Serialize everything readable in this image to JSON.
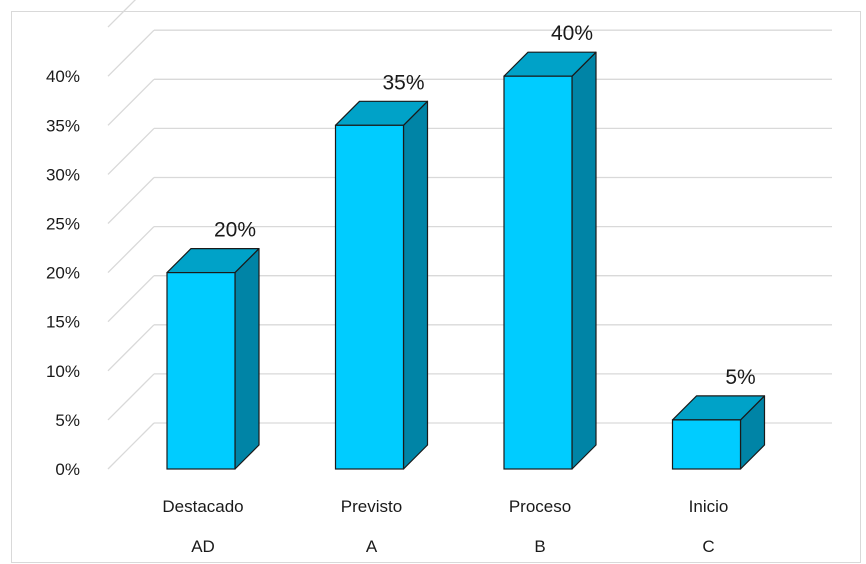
{
  "chart_data": {
    "type": "bar",
    "style": "3d-column",
    "categories": [
      "Destacado",
      "Previsto",
      "Proceso",
      "Inicio"
    ],
    "category_codes": [
      "AD",
      "A",
      "B",
      "C"
    ],
    "values": [
      20,
      35,
      40,
      5
    ],
    "data_labels": [
      "20%",
      "35%",
      "40%",
      "5%"
    ],
    "y_ticks": [
      "0%",
      "5%",
      "10%",
      "15%",
      "20%",
      "25%",
      "30%",
      "35%",
      "40%"
    ],
    "ylim": [
      0,
      40
    ],
    "grid": true,
    "legend": "none",
    "colors": {
      "front": "#00ccff",
      "top": "#00a2c8",
      "side": "#0084a6",
      "grid": "#d9d9d9",
      "outline": "#1a1a1a"
    }
  }
}
